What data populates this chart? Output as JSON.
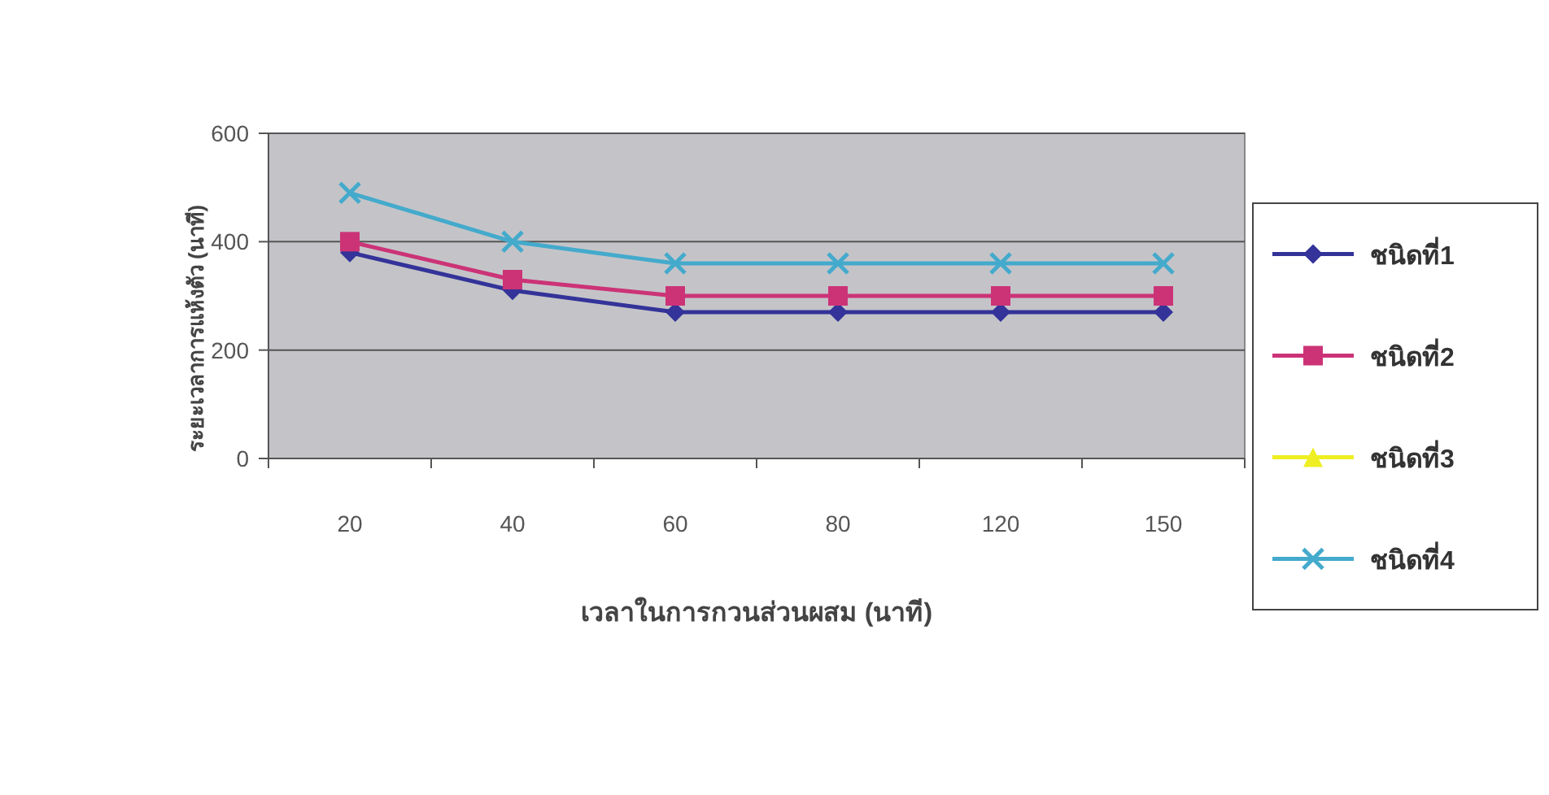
{
  "chart_data": {
    "type": "line",
    "xlabel": "เวลาในการกวนส่วนผสม (นาที)",
    "ylabel": "ระยะเวลาการแห้งตัว (นาที)",
    "categories": [
      "20",
      "40",
      "60",
      "80",
      "120",
      "150"
    ],
    "series": [
      {
        "name": "ชนิดที่1",
        "color": "#333399",
        "marker": "diamond",
        "values": [
          380,
          310,
          270,
          270,
          270,
          270
        ]
      },
      {
        "name": "ชนิดที่2",
        "color": "#cc3377",
        "marker": "square",
        "values": [
          400,
          330,
          300,
          300,
          300,
          300
        ]
      },
      {
        "name": "ชนิดที่3",
        "color": "#eeee22",
        "marker": "triangle",
        "values": [
          null,
          null,
          null,
          null,
          null,
          null
        ]
      },
      {
        "name": "ชนิดที่4",
        "color": "#44aacc",
        "marker": "cross",
        "values": [
          490,
          400,
          360,
          360,
          360,
          360
        ]
      }
    ],
    "ylim": [
      0,
      600
    ],
    "yticks": [
      0,
      200,
      400,
      600
    ],
    "grid": "y",
    "legend": "right"
  }
}
